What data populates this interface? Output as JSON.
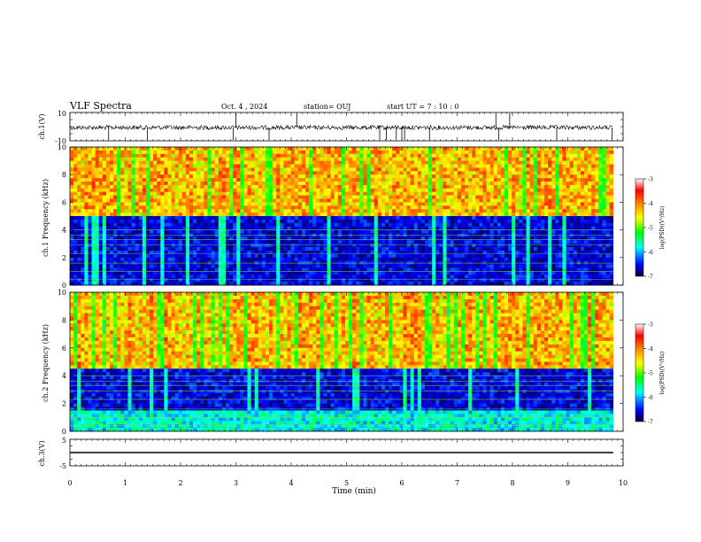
{
  "header": {
    "title": "VLF Spectra",
    "date": "Oct. 4 , 2024",
    "station": "station= OUJ",
    "start": "start UT = 7 : 10 : 0"
  },
  "colorbar": {
    "label": "log(PSD)(V²/Hz)",
    "ticks": [
      "-3",
      "-4",
      "-5",
      "-6",
      "-7"
    ],
    "colors": [
      "#00002a",
      "#0000ff",
      "#00ffff",
      "#00ff00",
      "#ffff00",
      "#ff8000",
      "#ff0000",
      "#ffffff"
    ]
  },
  "chart_data": [
    {
      "type": "line",
      "panel": "ch1-waveform",
      "ylabel": "ch.1(V)",
      "yticks": [
        "10",
        "-10"
      ],
      "ylim": [
        -10,
        10
      ],
      "approx_level": 0,
      "color": "#000000"
    },
    {
      "type": "heatmap",
      "panel": "ch1-spectrogram",
      "ylabel": "ch.1 Frequency (kHz)",
      "yticks": [
        "0",
        "2",
        "4",
        "6",
        "8",
        "10"
      ],
      "ylim": [
        0,
        10
      ],
      "xlim": [
        0,
        10
      ],
      "description_bands_khz": {
        "high_psd": [
          5,
          10
        ],
        "low_psd": [
          0,
          5
        ]
      }
    },
    {
      "type": "heatmap",
      "panel": "ch2-spectrogram",
      "ylabel": "ch.2 Frequency (kHz)",
      "yticks": [
        "0",
        "2",
        "4",
        "6",
        "8",
        "10"
      ],
      "ylim": [
        0,
        10
      ],
      "xlim": [
        0,
        10
      ],
      "description_bands_khz": {
        "high_psd": [
          4.5,
          10
        ],
        "low_psd": [
          0,
          4.5
        ]
      }
    },
    {
      "type": "line",
      "panel": "ch3-waveform",
      "ylabel": "ch.3(V)",
      "yticks": [
        "5",
        "-5"
      ],
      "ylim": [
        -5,
        5
      ],
      "approx_level": 0,
      "color": "#000000"
    }
  ],
  "xaxis": {
    "label": "Time (min)",
    "ticks": [
      "0",
      "1",
      "2",
      "3",
      "4",
      "5",
      "6",
      "7",
      "8",
      "9",
      "10"
    ],
    "xlim": [
      0,
      10
    ]
  }
}
